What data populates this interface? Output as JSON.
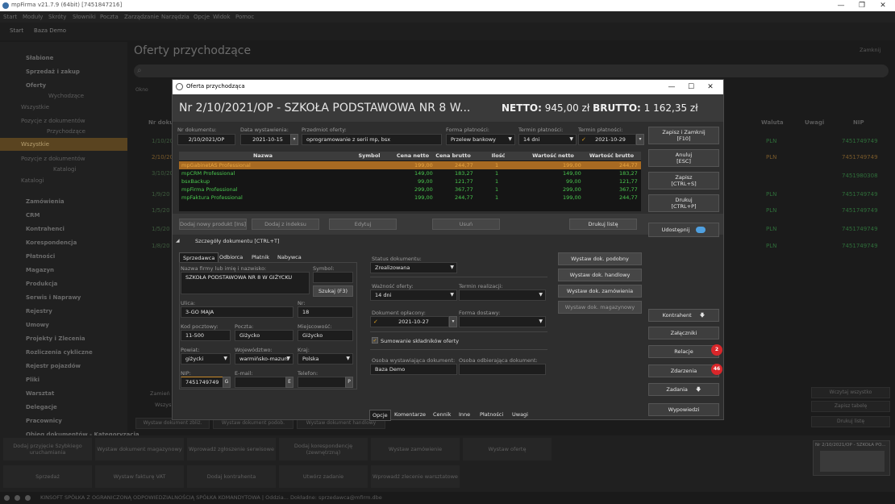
{
  "window": {
    "title": "mpFirma v21.7.9 (64bit) [7451847216]"
  },
  "menu": [
    "Start",
    "Moduły",
    "Skróty",
    "Słowniki",
    "Poczta",
    "Zarządzanie",
    "Narzędzia",
    "Opcje",
    "Widok",
    "Pomoc"
  ],
  "top_tabs": [
    "Start",
    "Baza Demo"
  ],
  "sidebar": {
    "sections": [
      "Słabione",
      "Sprzedaż i zakup",
      "Oferty"
    ],
    "wychodzace": "Wychodzące",
    "wszystkie1": "Wszystkie",
    "pozycje1": "Pozycje z dokumentów",
    "przychodzace": "Przychodzące",
    "wszystkie2": "Wszystkie",
    "pozycje2": "Pozycje z dokumentów",
    "katalogi_h": "Katalogi",
    "katalogi": "Katalogi",
    "modules": [
      "Zamówienia",
      "CRM",
      "Kontrahenci",
      "Korespondencja",
      "Płatności",
      "Magazyn",
      "Produkcja",
      "Serwis i Naprawy",
      "Rejestry",
      "Umowy",
      "Projekty i Zlecenia",
      "Rozliczenia cykliczne",
      "Rejestr pojazdów",
      "Pliki",
      "Warsztat",
      "Delegacje",
      "Pracownicy",
      "Obieg dokumentów - Kategoryzacja"
    ]
  },
  "background": {
    "title": "Oferty przychodzące",
    "close_label": "Zamknij",
    "okno": "Okno",
    "col_nr": "Nr doku",
    "col_waluta": "Waluta",
    "col_uwagi": "Uwagi",
    "col_nip": "NIP",
    "row_nrs": [
      "1/10/20",
      "2/10/20",
      "3/10/20",
      "1/9/20",
      "1/5/20",
      "1/5/20",
      "1/8/20"
    ],
    "currency": "PLN",
    "nip_values": [
      "7451749749",
      "7451749749",
      "7451980308",
      "7451749749",
      "7451749749",
      "7451749749",
      "7451749749"
    ],
    "bottom_left": [
      "Zamień",
      "Wszys"
    ],
    "bottom_strip": [
      "Wystaw dokument zbliż.",
      "Wystaw dokument podob.",
      "Wystaw dokument handlowy"
    ],
    "right_buttons": [
      "Wczytaj wszystko",
      "Zapisz tabelę",
      "Drukuj listę"
    ],
    "quick": [
      "Dodaj przyjęcie Szybkiego uruchamiania",
      "Wystaw dokument magazynowy",
      "Wprowadź zgłoszenie serwisowe",
      "Dodaj korespondencję (zewnętrzną)",
      "Wystaw zamówienie",
      "Wystaw ofertę",
      "Sprzedaż",
      "Wystaw fakturę VAT",
      "Dodaj kontrahenta",
      "Utwórz zadanie",
      "Wprowadź zlecenie warsztatowe"
    ],
    "thumb_title": "Nr 2/10/2021/OP - SZKOŁA PO..."
  },
  "status": {
    "text": "KINSOFT SPÓŁKA Z OGRANICZONĄ ODPOWIEDZIALNOŚCIĄ SPÓŁKA KOMANDYTOWA | Oddzia... Dokładne: sprzedawca@mfirm.dbe"
  },
  "modal": {
    "title": "Oferta przychodząca",
    "doc_title": "Nr 2/10/2021/OP - SZKOŁA PODSTAWOWA NR 8 W...",
    "netto_label": "NETTO:",
    "netto_value": "945,00 zł",
    "brutto_label": "BRUTTO:",
    "brutto_value": "1 162,35 zł",
    "nr_label": "Nr dokumentu:",
    "nr_value": "2/10/2021/OP",
    "data_label": "Data wystawienia:",
    "data_value": "2021-10-15",
    "przedmiot_label": "Przedmiot oferty:",
    "przedmiot_value": "oprogramowanie z serii mp, bsx",
    "forma_label": "Forma płatności:",
    "forma_value": "Przelew bankowy",
    "termin_label": "Termin płatności:",
    "termin_value": "14 dni",
    "termin2_label": "Termin płatności:",
    "termin2_value": "2021-10-29",
    "table": {
      "headers": [
        "Nazwa",
        "Symbol",
        "Cena netto",
        "Cena brutto",
        "Ilość",
        "Wartość netto",
        "Wartość brutto"
      ],
      "rows": [
        [
          "mpGabinetAS Professional",
          "",
          "199,00",
          "244,77",
          "1",
          "199,00",
          "244,77"
        ],
        [
          "mpCRM Professional",
          "",
          "149,00",
          "183,27",
          "1",
          "149,00",
          "183,27"
        ],
        [
          "bsxBackup",
          "",
          "99,00",
          "121,77",
          "1",
          "99,00",
          "121,77"
        ],
        [
          "mpFirma Professional",
          "",
          "299,00",
          "367,77",
          "1",
          "299,00",
          "367,77"
        ],
        [
          "mpFaktura Professional",
          "",
          "199,00",
          "244,77",
          "1",
          "199,00",
          "244,77"
        ]
      ]
    },
    "btn_add": "Dodaj nowy produkt [Ins]",
    "btn_add_index": "Dodaj z indeksu",
    "btn_edit": "Edytuj",
    "btn_delete": "Usuń",
    "btn_print_list": "Drukuj listę",
    "details_toggle": "Szczegóły dokumentu [CTRL+T]",
    "party_tabs": [
      "Sprzedawca",
      "Odbiorca",
      "Płatnik",
      "Nabywca"
    ],
    "party": {
      "name_label": "Nazwa firmy lub imię i nazwisko:",
      "name_value": "SZKOŁA PODSTAWOWA NR 8 W GIŻYCKU",
      "symbol_label": "Symbol:",
      "search_btn": "Szukaj (F3)",
      "ulica_label": "Ulica:",
      "ulica_value": "3-GO MAJA",
      "nr_label": "Nr:",
      "nr_value": "18",
      "kod_label": "Kod pocztowy:",
      "kod_value": "11-500",
      "poczta_label": "Poczta:",
      "poczta_value": "Giżycko",
      "miejsc_label": "Miejscowość:",
      "miejsc_value": "Giżycko",
      "powiat_label": "Powiat:",
      "powiat_value": "giżycki",
      "woj_label": "Województwo:",
      "woj_value": "warmińsko-mazurs",
      "kraj_label": "Kraj:",
      "kraj_value": "Polska",
      "nip_label": "NIP:",
      "nip_value": "7451749749",
      "nip_btn": "G",
      "email_label": "E-mail:",
      "email_btn": "E",
      "tel_label": "Telefon:",
      "tel_btn": "P"
    },
    "options": {
      "status_label": "Status dokumentu:",
      "status_value": "Zrealizowana",
      "waznosc_label": "Ważność oferty:",
      "waznosc_value": "14 dni",
      "realizacja_label": "Termin realizacji:",
      "oplacony_label": "Dokument opłacony:",
      "oplacony_value": "2021-10-27",
      "dostawa_label": "Forma dostawy:",
      "sumowanie_label": "Sumowanie składników oferty",
      "wystawiajacy_label": "Osoba wystawiająca dokument:",
      "wystawiajacy_value": "Baza Demo",
      "odbierajacy_label": "Osoba odbierająca dokument:"
    },
    "mid_buttons": [
      "Wystaw dok. podobny",
      "Wystaw dok. handlowy",
      "Wystaw dok. zamówienia",
      "Wystaw dok. magazynowy"
    ],
    "option_tabs": [
      "Opcje",
      "Komentarze",
      "Cennik",
      "Inne",
      "Płatności",
      "Uwagi"
    ],
    "right": {
      "save_close": "Zapisz i Zamknij",
      "save_close_key": "[F10]",
      "cancel": "Anuluj",
      "cancel_key": "[ESC]",
      "save": "Zapisz",
      "save_key": "[CTRL+S]",
      "print": "Drukuj",
      "print_key": "[CTRL+P]",
      "share": "Udostępnij",
      "kontrahent": "Kontrahent",
      "zalaczniki": "Załączniki",
      "relacje": "Relacje",
      "relacje_badge": "2",
      "zdarzenia": "Zdarzenia",
      "zdarzenia_badge": "46",
      "zadania": "Zadania",
      "wypowiedzi": "Wypowiedzi"
    },
    "colors": {
      "selected_row": "#a86a22",
      "green_text": "#4ac84f",
      "badge": "#d9262a",
      "accent": "#e0a020"
    }
  }
}
